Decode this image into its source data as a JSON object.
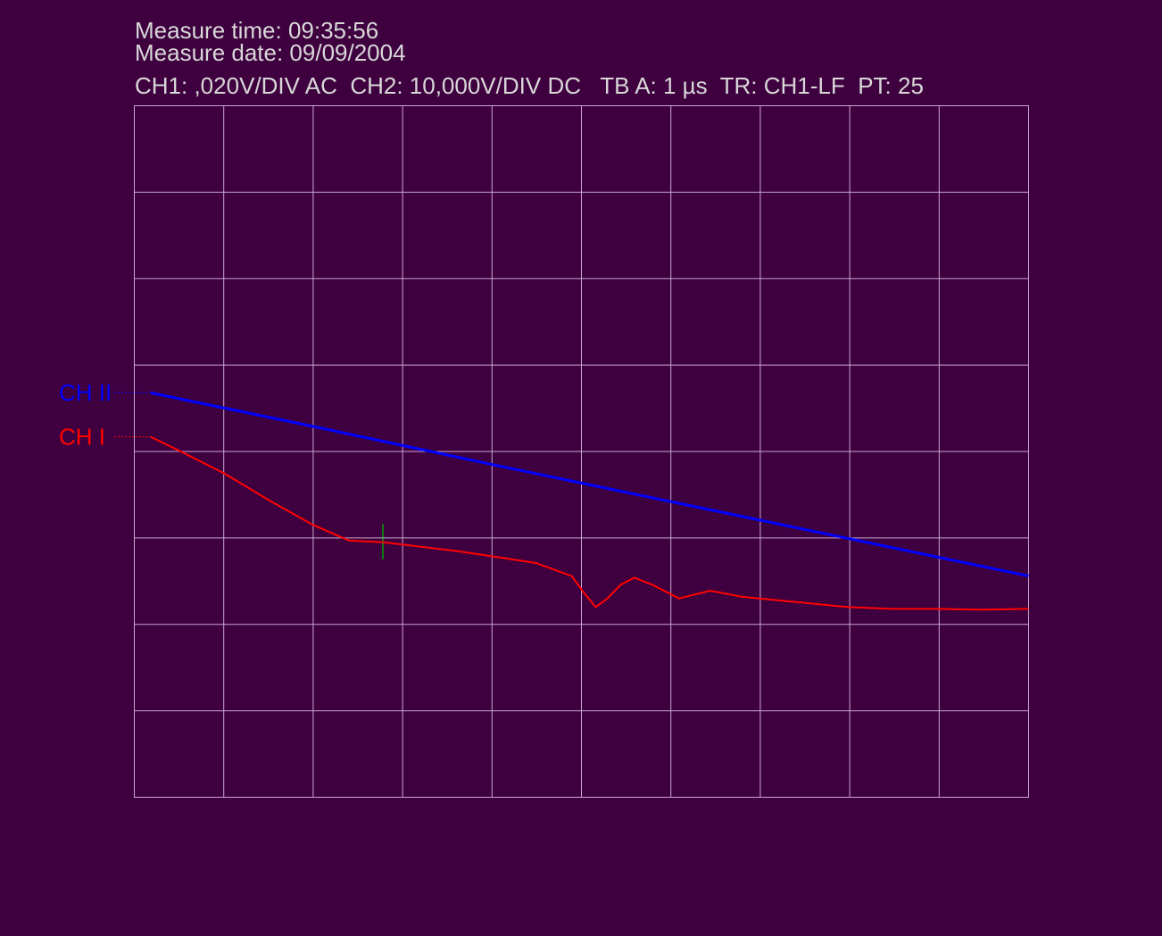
{
  "chart_data": {
    "type": "line",
    "title": "Measure time: 09:35:56",
    "subtitle": "Measure date: 09/09/2004",
    "settings": "CH1: ,020V/DIV AC  CH2: 10,000V/DIV DC   TB A: 1 µs  TR: CH1-LF  PT: 25",
    "xlim": [
      0,
      10
    ],
    "ylim": [
      0,
      8
    ],
    "xticks": [
      0,
      1,
      2,
      3,
      4,
      5,
      6,
      7,
      8,
      9,
      10
    ],
    "yticks": [
      0,
      1,
      2,
      3,
      4,
      5,
      6,
      7,
      8
    ],
    "grid": true,
    "series": [
      {
        "name": "CH II",
        "color": "#0000ff",
        "x": [
          0.18,
          2,
          4,
          6,
          8,
          10
        ],
        "values": [
          4.68,
          4.29,
          3.85,
          3.42,
          2.99,
          2.56
        ]
      },
      {
        "name": "CH I",
        "color": "#ff0000",
        "x": [
          0.18,
          0.5,
          1.0,
          1.5,
          2.0,
          2.4,
          2.79,
          3.19,
          3.59,
          3.99,
          4.49,
          4.89,
          5.04,
          5.16,
          5.29,
          5.44,
          5.59,
          5.79,
          6.09,
          6.44,
          6.79,
          7.29,
          7.98,
          8.48,
          8.98,
          9.48,
          10.0
        ],
        "values": [
          4.17,
          4.01,
          3.75,
          3.44,
          3.15,
          2.97,
          2.95,
          2.9,
          2.85,
          2.79,
          2.71,
          2.56,
          2.35,
          2.2,
          2.3,
          2.46,
          2.54,
          2.46,
          2.3,
          2.39,
          2.32,
          2.27,
          2.2,
          2.18,
          2.18,
          2.17,
          2.18
        ]
      }
    ]
  }
}
